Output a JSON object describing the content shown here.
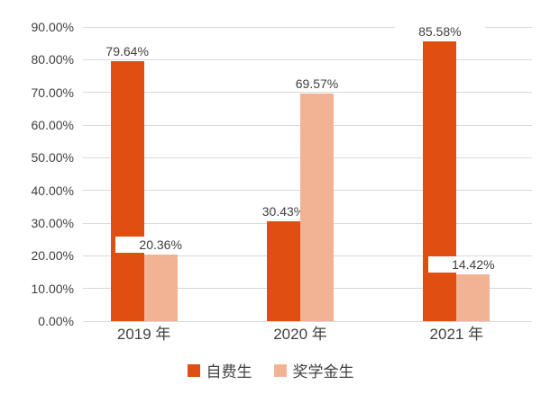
{
  "chart_data": {
    "type": "bar",
    "categories": [
      "2019 年",
      "2020 年",
      "2021 年"
    ],
    "series": [
      {
        "name": "自费生",
        "color": "#E04E12",
        "values": [
          79.64,
          30.43,
          85.58
        ],
        "data_labels": [
          "79.64%",
          "30.43%",
          "85.58%"
        ]
      },
      {
        "name": "奖学金生",
        "color": "#F2B294",
        "values": [
          20.36,
          69.57,
          14.42
        ],
        "data_labels": [
          "20.36%",
          "69.57%",
          "14.42%"
        ]
      }
    ],
    "y_axis": {
      "min": 0,
      "max": 90,
      "step": 10,
      "tick_labels": [
        "0.00%",
        "10.00%",
        "20.00%",
        "30.00%",
        "40.00%",
        "50.00%",
        "60.00%",
        "70.00%",
        "80.00%",
        "90.00%"
      ]
    },
    "grid": true,
    "legend_position": "bottom",
    "colors": {
      "grid": "#D9D9D9",
      "text": "#404040",
      "background": "#FFFFFF"
    }
  }
}
